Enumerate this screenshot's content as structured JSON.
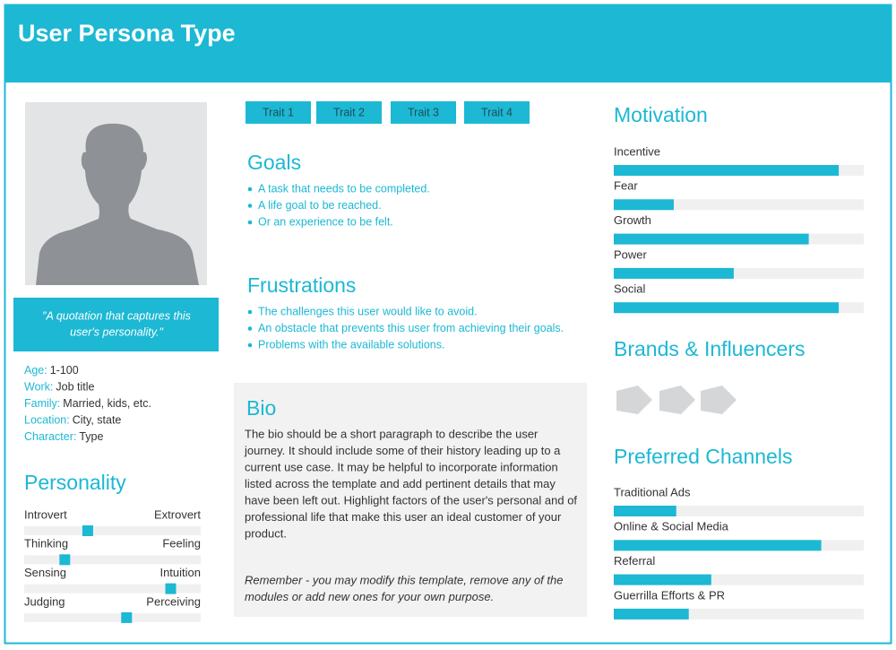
{
  "header": {
    "title": "User Persona Type"
  },
  "profile": {
    "quote": [
      "\"A quotation that captures this",
      "user's personality.\""
    ],
    "details": [
      {
        "label": "Age:",
        "value": "1-100"
      },
      {
        "label": "Work:",
        "value": "Job title"
      },
      {
        "label": "Family:",
        "value": "Married, kids, etc."
      },
      {
        "label": "Location:",
        "value": "City, state"
      },
      {
        "label": "Character:",
        "value": "Type"
      }
    ]
  },
  "personality": {
    "title": "Personality",
    "scale": [
      0,
      100
    ],
    "rows": [
      {
        "left": "Introvert",
        "right": "Extrovert",
        "value": 36
      },
      {
        "left": "Thinking",
        "right": "Feeling",
        "value": 23
      },
      {
        "left": "Sensing",
        "right": "Intuition",
        "value": 83
      },
      {
        "left": "Judging",
        "right": "Perceiving",
        "value": 58
      }
    ]
  },
  "traits": [
    "Trait 1",
    "Trait 2",
    "Trait 3",
    "Trait 4"
  ],
  "goals": {
    "title": "Goals",
    "items": [
      "A task that needs to be completed.",
      "A life goal to be reached.",
      "Or an experience to be felt."
    ]
  },
  "frustrations": {
    "title": "Frustrations",
    "items": [
      "The challenges this user would like to avoid.",
      "An obstacle that prevents this user from achieving their goals.",
      "Problems with the available solutions."
    ]
  },
  "bio": {
    "title": "Bio",
    "lines": [
      "The bio should be a short paragraph to describe the user",
      "journey. It should include some of their history leading up to a",
      "current use case. It may be helpful to incorporate information",
      "listed across the template and add pertinent details that may",
      "have been left out. Highlight factors of the user's personal and of",
      "professional life that make this user an ideal customer of your",
      "product."
    ],
    "note": [
      "Remember - you may modify this template, remove any of the",
      "modules or add new ones for your own purpose."
    ]
  },
  "motivation": {
    "title": "Motivation",
    "scale": [
      0,
      100
    ],
    "items": [
      {
        "name": "Incentive",
        "value": 90
      },
      {
        "name": "Fear",
        "value": 24
      },
      {
        "name": "Growth",
        "value": 78
      },
      {
        "name": "Power",
        "value": 48
      },
      {
        "name": "Social",
        "value": 90
      }
    ]
  },
  "brands": {
    "title": "Brands & Influencers"
  },
  "channels": {
    "title": "Preferred Channels",
    "scale": [
      0,
      100
    ],
    "items": [
      {
        "name": "Traditional Ads",
        "value": 25
      },
      {
        "name": "Online & Social Media",
        "value": 83
      },
      {
        "name": "Referral",
        "value": 39
      },
      {
        "name": "Guerrilla Efforts & PR",
        "value": 30
      }
    ]
  }
}
